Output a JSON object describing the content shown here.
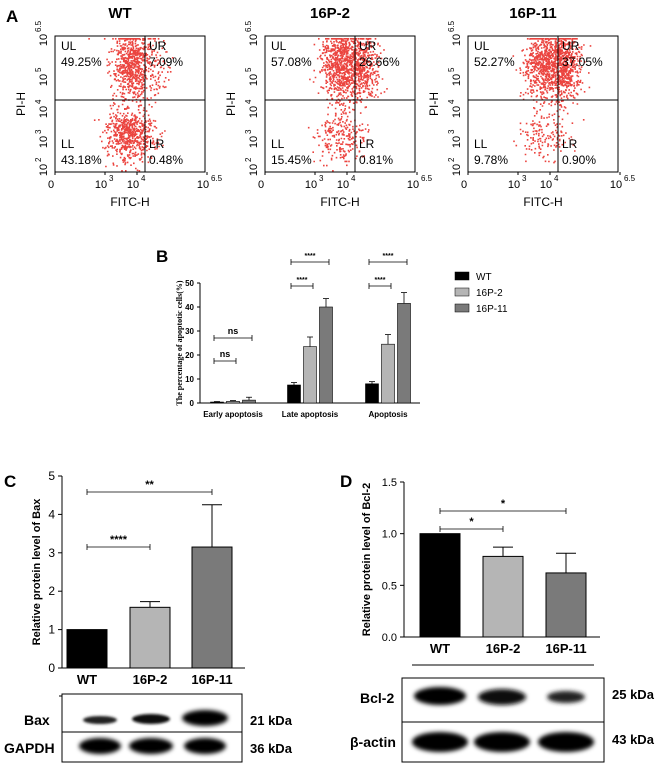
{
  "panel_labels": {
    "a": "A",
    "b": "B",
    "c": "C",
    "d": "D"
  },
  "flow": {
    "x_axis_label": "FITC-H",
    "y_axis_label": "PI-H",
    "tick_labels": [
      "0",
      "10",
      "3",
      "10",
      "4",
      "10",
      "6.5",
      "10",
      "2",
      "10",
      "3",
      "10",
      "4",
      "10",
      "5",
      "10",
      "6.5"
    ],
    "quadrant_names": [
      "UL",
      "UR",
      "LL",
      "LR"
    ],
    "plots": [
      {
        "title": "WT",
        "UL": "49.25%",
        "UR": "7.09%",
        "LL": "43.18%",
        "LR": "0.48%"
      },
      {
        "title": "16P-2",
        "UL": "57.08%",
        "UR": "26.66%",
        "LL": "15.45%",
        "LR": "0.81%"
      },
      {
        "title": "16P-11",
        "UL": "52.27%",
        "UR": "37.05%",
        "LL": "9.78%",
        "LR": "0.90%"
      }
    ]
  },
  "chart_data": [
    {
      "type": "bar",
      "panel": "B",
      "ylabel": "The percentage of apoptotic cells(%)",
      "ylim": [
        0,
        50
      ],
      "yticks": [
        "0",
        "10",
        "20",
        "30",
        "40",
        "50"
      ],
      "categories": [
        "Early apoptosis",
        "Late apoptosis",
        "Apoptosis"
      ],
      "series": [
        {
          "name": "WT",
          "color": "#000000",
          "values": [
            0.4,
            7.5,
            8.0
          ],
          "errors": [
            0.2,
            1.0,
            0.9
          ]
        },
        {
          "name": "16P-2",
          "color": "#b5b5b5",
          "values": [
            0.7,
            23.5,
            24.5
          ],
          "errors": [
            0.3,
            4.0,
            4.0
          ]
        },
        {
          "name": "16P-11",
          "color": "#7a7a7a",
          "values": [
            1.2,
            40.0,
            41.5
          ],
          "errors": [
            1.2,
            3.5,
            4.5
          ]
        }
      ],
      "significance": [
        "ns",
        "ns",
        "****",
        "****",
        "****",
        "****"
      ],
      "legend": "right"
    },
    {
      "type": "bar",
      "panel": "C",
      "ylabel": "Relative protein level of Bax",
      "ylim": [
        0,
        5
      ],
      "yticks": [
        "0",
        "1",
        "2",
        "3",
        "4",
        "5"
      ],
      "categories": [
        "WT",
        "16P-2",
        "16P-11"
      ],
      "values": [
        1.0,
        1.58,
        3.15
      ],
      "errors": [
        0,
        0.15,
        1.1
      ],
      "colors": [
        "#000000",
        "#b5b5b5",
        "#7a7a7a"
      ],
      "significance": [
        "****",
        "**"
      ]
    },
    {
      "type": "bar",
      "panel": "D",
      "ylabel": "Relative protein level of Bcl-2",
      "ylim": [
        0,
        1.5
      ],
      "yticks": [
        "0.0",
        "0.5",
        "1.0",
        "1.5"
      ],
      "categories": [
        "WT",
        "16P-2",
        "16P-11"
      ],
      "values": [
        1.0,
        0.78,
        0.62
      ],
      "errors": [
        0,
        0.09,
        0.19
      ],
      "colors": [
        "#000000",
        "#b5b5b5",
        "#7a7a7a"
      ],
      "significance": [
        "*",
        "*"
      ]
    }
  ],
  "blots": {
    "c": [
      {
        "label": "Bax",
        "size": "21 kDa"
      },
      {
        "label": "GAPDH",
        "size": "36 kDa"
      }
    ],
    "d": [
      {
        "label": "Bcl-2",
        "size": "25 kDa"
      },
      {
        "label": "β-actin",
        "size": "43 kDa"
      }
    ]
  }
}
